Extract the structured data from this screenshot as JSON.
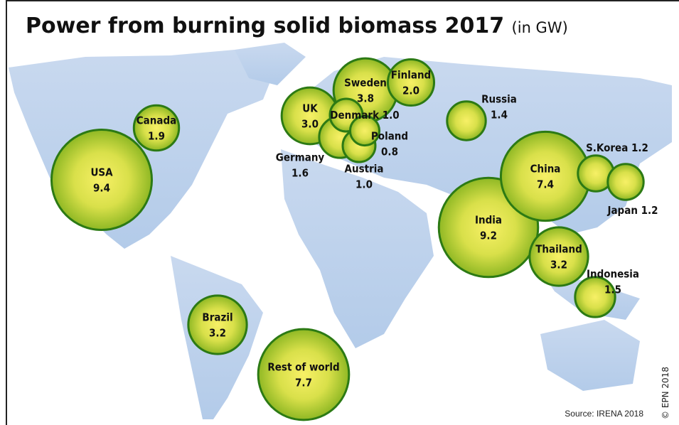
{
  "title": "Power from burning solid biomass 2017",
  "subtitle": "(in GW)",
  "source": "Source: IRENA 2018",
  "copyright": "© EPN 2018",
  "bubbles": {
    "names": [
      "USA",
      "Canada",
      "Rest of world",
      "Brazil",
      "UK",
      "Sweden",
      "Finland",
      "Germany",
      "Denmark",
      "Austria",
      "Poland",
      "Russia",
      "India",
      "China",
      "S.Korea",
      "Japan",
      "Thailand",
      "Indonesia"
    ],
    "values": [
      9.4,
      1.9,
      7.7,
      3.2,
      3.0,
      3.8,
      2.0,
      1.6,
      1.0,
      1.0,
      0.8,
      1.4,
      9.2,
      7.4,
      1.2,
      1.2,
      3.2,
      1.5
    ],
    "value_labels": [
      "9.4",
      "1.9",
      "7.7",
      "3.2",
      "3.0",
      "3.8",
      "2.0",
      "1.6",
      "1.0",
      "1.0",
      "0.8",
      "1.4",
      "9.2",
      "7.4",
      "1.2",
      "1.2",
      "3.2",
      "1.5"
    ]
  }
}
